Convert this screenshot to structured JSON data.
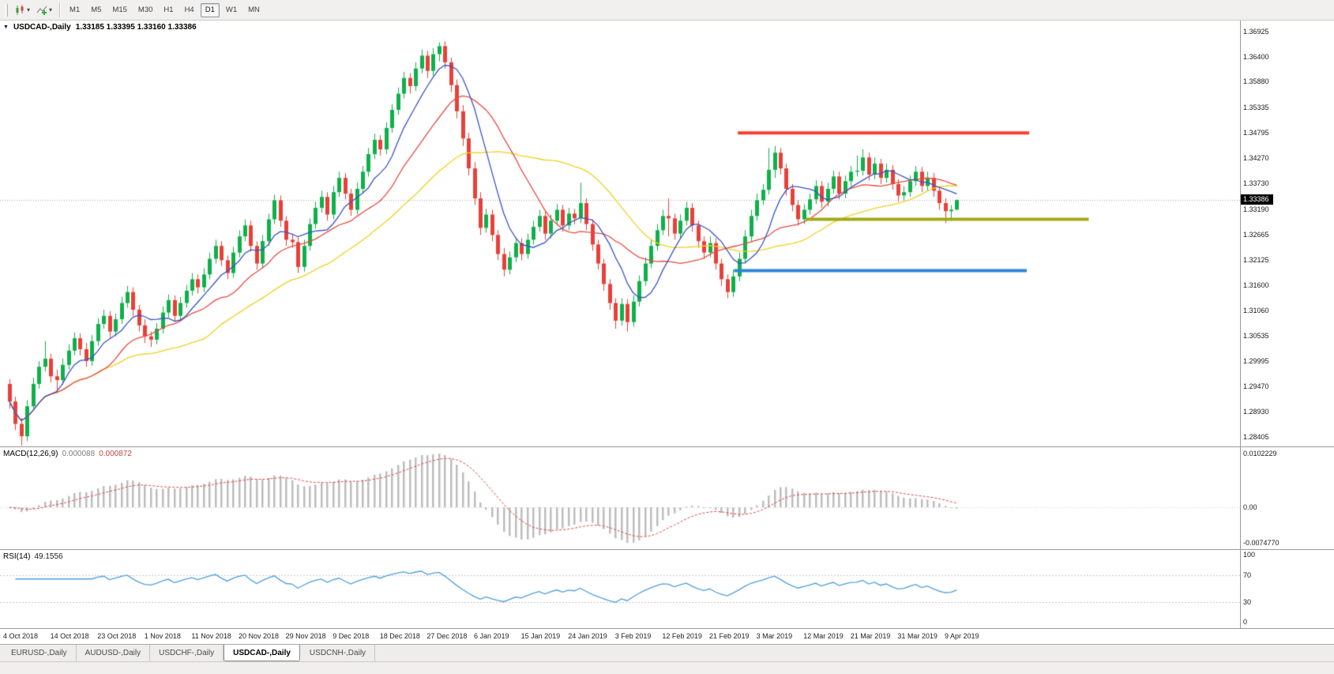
{
  "toolbar": {
    "timeframes": [
      "M1",
      "M5",
      "M15",
      "M30",
      "H1",
      "H4",
      "D1",
      "W1",
      "MN"
    ],
    "active_timeframe": "D1"
  },
  "main_chart": {
    "symbol_period": "USDCAD-,Daily",
    "ohlc": "1.33185 1.33395 1.33160 1.33386",
    "current_price": "1.33386",
    "price_ticks": [
      "1.36925",
      "1.36400",
      "1.35880",
      "1.35335",
      "1.34795",
      "1.34270",
      "1.33730",
      "1.33190",
      "1.32665",
      "1.32125",
      "1.31600",
      "1.31060",
      "1.30535",
      "1.29995",
      "1.29470",
      "1.28930",
      "1.28405"
    ]
  },
  "macd_panel": {
    "label": "MACD(12,26,9)",
    "value_main": "0.000088",
    "value_signal": "0.000872",
    "axis_top": "0.0102229",
    "axis_zero": "0.00",
    "axis_bottom": "-0.0074770"
  },
  "rsi_panel": {
    "label": "RSI(14)",
    "value": "49.1556",
    "axis": [
      "100",
      "70",
      "30",
      "0"
    ],
    "levels": [
      70,
      30
    ]
  },
  "date_axis": {
    "candles_per_label": 8,
    "labels": [
      "4 Oct 2018",
      "14 Oct 2018",
      "23 Oct 2018",
      "1 Nov 2018",
      "11 Nov 2018",
      "20 Nov 2018",
      "29 Nov 2018",
      "9 Dec 2018",
      "18 Dec 2018",
      "27 Dec 2018",
      "6 Jan 2019",
      "15 Jan 2019",
      "24 Jan 2019",
      "3 Feb 2019",
      "12 Feb 2019",
      "21 Feb 2019",
      "3 Mar 2019",
      "12 Mar 2019",
      "21 Mar 2019",
      "31 Mar 2019",
      "9 Apr 2019"
    ]
  },
  "tabs": {
    "items": [
      "EURUSD-,Daily",
      "AUDUSD-,Daily",
      "USDCHF-,Daily",
      "USDCAD-,Daily",
      "USDCNH-,Daily"
    ],
    "active": "USDCAD-,Daily"
  },
  "chart_data": {
    "type": "candlestick",
    "symbol": "USDCAD",
    "timeframe": "Daily",
    "price_max": 1.36925,
    "price_min": 1.28405,
    "current_price": 1.33386,
    "bull_color": "#0fb04b",
    "bear_color": "#e8403a",
    "moving_averages": [
      {
        "period": 8,
        "color": "#3a53c4"
      },
      {
        "period": 17,
        "color": "#e84a3f"
      },
      {
        "period": 34,
        "color": "#f0d01e"
      }
    ],
    "hlines": [
      {
        "name": "resistance-line",
        "price": 1.34795,
        "color": "#ff3c32",
        "width": 4,
        "x1": 0.595,
        "x2": 0.83
      },
      {
        "name": "support-line-olive",
        "price": 1.3298,
        "color": "#a2a818",
        "width": 4,
        "x1": 0.65,
        "x2": 0.878
      },
      {
        "name": "support-line-blue",
        "price": 1.319,
        "color": "#2f84d6",
        "width": 4,
        "x1": 0.592,
        "x2": 0.828
      }
    ],
    "macd": {
      "fast": 12,
      "slow": 26,
      "signal": 9,
      "histogram_color": "#bdbdbd",
      "signal_color": "#d94848",
      "range": [
        -0.007477,
        0.0102229
      ]
    },
    "rsi": {
      "period": 14,
      "color": "#4d9fdd",
      "value": 49.1556
    },
    "candles": [
      [
        1.2952,
        1.2962,
        1.29,
        1.2915
      ],
      [
        1.2915,
        1.2925,
        1.2855,
        1.2868
      ],
      [
        1.2868,
        1.288,
        1.2822,
        1.2842
      ],
      [
        1.2842,
        1.2918,
        1.2832,
        1.2905
      ],
      [
        1.2905,
        1.2965,
        1.2895,
        1.2952
      ],
      [
        1.2952,
        1.3,
        1.2942,
        1.2988
      ],
      [
        1.2988,
        1.3042,
        1.2978,
        1.3005
      ],
      [
        1.3005,
        1.3015,
        1.2955,
        1.2968
      ],
      [
        1.2968,
        1.2982,
        1.2935,
        1.296
      ],
      [
        1.296,
        1.3005,
        1.295,
        1.2992
      ],
      [
        1.2992,
        1.3035,
        1.2982,
        1.3022
      ],
      [
        1.3022,
        1.306,
        1.3012,
        1.3048
      ],
      [
        1.3048,
        1.3058,
        1.3012,
        1.3025
      ],
      [
        1.3025,
        1.3038,
        1.2988,
        1.3
      ],
      [
        1.3,
        1.3055,
        1.299,
        1.3042
      ],
      [
        1.3042,
        1.309,
        1.3032,
        1.3078
      ],
      [
        1.3078,
        1.3108,
        1.3068,
        1.3095
      ],
      [
        1.3095,
        1.3105,
        1.3048,
        1.3062
      ],
      [
        1.3062,
        1.31,
        1.3052,
        1.3088
      ],
      [
        1.3088,
        1.3135,
        1.3078,
        1.3122
      ],
      [
        1.3122,
        1.3158,
        1.3112,
        1.3145
      ],
      [
        1.3145,
        1.3155,
        1.3095,
        1.3108
      ],
      [
        1.3108,
        1.3118,
        1.3062,
        1.3075
      ],
      [
        1.3075,
        1.3088,
        1.3038,
        1.3052
      ],
      [
        1.3052,
        1.3062,
        1.303,
        1.3045
      ],
      [
        1.3045,
        1.308,
        1.3035,
        1.3068
      ],
      [
        1.3068,
        1.3115,
        1.3058,
        1.3102
      ],
      [
        1.3102,
        1.314,
        1.3092,
        1.3128
      ],
      [
        1.3128,
        1.3138,
        1.3082,
        1.3095
      ],
      [
        1.3095,
        1.3135,
        1.3085,
        1.3122
      ],
      [
        1.3122,
        1.316,
        1.3112,
        1.3148
      ],
      [
        1.3148,
        1.3185,
        1.3138,
        1.3172
      ],
      [
        1.3172,
        1.3182,
        1.3142,
        1.3155
      ],
      [
        1.3155,
        1.3195,
        1.3145,
        1.3182
      ],
      [
        1.3182,
        1.3228,
        1.3172,
        1.3215
      ],
      [
        1.3215,
        1.3255,
        1.3205,
        1.3242
      ],
      [
        1.3242,
        1.3252,
        1.32,
        1.3212
      ],
      [
        1.3212,
        1.3222,
        1.3172,
        1.3185
      ],
      [
        1.3185,
        1.324,
        1.3175,
        1.3228
      ],
      [
        1.3228,
        1.3275,
        1.3218,
        1.3262
      ],
      [
        1.3262,
        1.3298,
        1.3252,
        1.3285
      ],
      [
        1.3285,
        1.3295,
        1.323,
        1.3242
      ],
      [
        1.3242,
        1.3252,
        1.3192,
        1.3205
      ],
      [
        1.3205,
        1.3265,
        1.3195,
        1.3252
      ],
      [
        1.3252,
        1.331,
        1.3242,
        1.3298
      ],
      [
        1.3298,
        1.335,
        1.3288,
        1.3338
      ],
      [
        1.3338,
        1.3348,
        1.3282,
        1.3295
      ],
      [
        1.3295,
        1.3305,
        1.3242,
        1.3255
      ],
      [
        1.3255,
        1.3268,
        1.3238,
        1.325
      ],
      [
        1.325,
        1.326,
        1.3185,
        1.3198
      ],
      [
        1.3198,
        1.3255,
        1.3188,
        1.3242
      ],
      [
        1.3242,
        1.33,
        1.3232,
        1.3288
      ],
      [
        1.3288,
        1.3335,
        1.3278,
        1.3322
      ],
      [
        1.3322,
        1.3358,
        1.3312,
        1.3345
      ],
      [
        1.3345,
        1.3355,
        1.3295,
        1.3308
      ],
      [
        1.3308,
        1.3368,
        1.3298,
        1.3355
      ],
      [
        1.3355,
        1.3398,
        1.3345,
        1.3385
      ],
      [
        1.3385,
        1.3395,
        1.334,
        1.3352
      ],
      [
        1.3352,
        1.3362,
        1.3305,
        1.3318
      ],
      [
        1.3318,
        1.3375,
        1.3308,
        1.3362
      ],
      [
        1.3362,
        1.341,
        1.3352,
        1.3398
      ],
      [
        1.3398,
        1.3448,
        1.3388,
        1.3435
      ],
      [
        1.3435,
        1.3478,
        1.3425,
        1.3465
      ],
      [
        1.3465,
        1.3475,
        1.3432,
        1.3445
      ],
      [
        1.3445,
        1.3502,
        1.3435,
        1.349
      ],
      [
        1.349,
        1.354,
        1.348,
        1.3528
      ],
      [
        1.3528,
        1.3575,
        1.3518,
        1.3562
      ],
      [
        1.3562,
        1.3608,
        1.3552,
        1.3595
      ],
      [
        1.3595,
        1.3605,
        1.3562,
        1.3578
      ],
      [
        1.3578,
        1.3628,
        1.3568,
        1.3615
      ],
      [
        1.3615,
        1.3655,
        1.3605,
        1.3642
      ],
      [
        1.3642,
        1.3652,
        1.3595,
        1.361
      ],
      [
        1.361,
        1.3658,
        1.36,
        1.3645
      ],
      [
        1.3645,
        1.367,
        1.363,
        1.3662
      ],
      [
        1.3662,
        1.3672,
        1.3615,
        1.3628
      ],
      [
        1.3628,
        1.3638,
        1.3565,
        1.358
      ],
      [
        1.358,
        1.3592,
        1.351,
        1.3525
      ],
      [
        1.3525,
        1.3538,
        1.3452,
        1.3468
      ],
      [
        1.3468,
        1.348,
        1.339,
        1.3405
      ],
      [
        1.3405,
        1.3418,
        1.3328,
        1.3342
      ],
      [
        1.3342,
        1.3355,
        1.3265,
        1.328
      ],
      [
        1.328,
        1.332,
        1.327,
        1.3308
      ],
      [
        1.3308,
        1.3318,
        1.3252,
        1.3265
      ],
      [
        1.3265,
        1.3275,
        1.3212,
        1.3225
      ],
      [
        1.3225,
        1.3238,
        1.3178,
        1.3192
      ],
      [
        1.3192,
        1.323,
        1.3182,
        1.3218
      ],
      [
        1.3218,
        1.326,
        1.3208,
        1.3248
      ],
      [
        1.3248,
        1.3258,
        1.3212,
        1.3225
      ],
      [
        1.3225,
        1.3268,
        1.3215,
        1.3255
      ],
      [
        1.3255,
        1.3295,
        1.3245,
        1.3282
      ],
      [
        1.3282,
        1.3318,
        1.3272,
        1.3305
      ],
      [
        1.3305,
        1.3315,
        1.3255,
        1.3268
      ],
      [
        1.3268,
        1.3308,
        1.3258,
        1.3295
      ],
      [
        1.3295,
        1.333,
        1.3285,
        1.3318
      ],
      [
        1.3318,
        1.3328,
        1.3272,
        1.3285
      ],
      [
        1.3285,
        1.3322,
        1.3275,
        1.331
      ],
      [
        1.331,
        1.332,
        1.3288,
        1.33
      ],
      [
        1.33,
        1.3375,
        1.329,
        1.3332
      ],
      [
        1.3332,
        1.3342,
        1.3275,
        1.3288
      ],
      [
        1.3288,
        1.3298,
        1.3232,
        1.3245
      ],
      [
        1.3245,
        1.3255,
        1.3192,
        1.3205
      ],
      [
        1.3205,
        1.3215,
        1.3148,
        1.3162
      ],
      [
        1.3162,
        1.3172,
        1.3108,
        1.3122
      ],
      [
        1.3122,
        1.3132,
        1.3068,
        1.3085
      ],
      [
        1.3085,
        1.3132,
        1.3075,
        1.312
      ],
      [
        1.312,
        1.313,
        1.3062,
        1.3082
      ],
      [
        1.3082,
        1.3138,
        1.3072,
        1.3125
      ],
      [
        1.3125,
        1.318,
        1.3115,
        1.3168
      ],
      [
        1.3168,
        1.3218,
        1.3158,
        1.3205
      ],
      [
        1.3205,
        1.3255,
        1.3195,
        1.3242
      ],
      [
        1.3242,
        1.3288,
        1.3232,
        1.3275
      ],
      [
        1.3275,
        1.3318,
        1.3265,
        1.3305
      ],
      [
        1.3305,
        1.3342,
        1.3262,
        1.33
      ],
      [
        1.33,
        1.331,
        1.3255,
        1.3268
      ],
      [
        1.3268,
        1.3308,
        1.3258,
        1.3295
      ],
      [
        1.3295,
        1.3335,
        1.3285,
        1.3322
      ],
      [
        1.3322,
        1.3332,
        1.3272,
        1.3285
      ],
      [
        1.3285,
        1.3295,
        1.3238,
        1.3252
      ],
      [
        1.3252,
        1.3262,
        1.3215,
        1.3228
      ],
      [
        1.3228,
        1.3262,
        1.3218,
        1.3248
      ],
      [
        1.3248,
        1.3258,
        1.3192,
        1.3205
      ],
      [
        1.3205,
        1.3215,
        1.3158,
        1.3172
      ],
      [
        1.3172,
        1.3182,
        1.3132,
        1.3145
      ],
      [
        1.3145,
        1.3192,
        1.3135,
        1.3178
      ],
      [
        1.3178,
        1.3228,
        1.3168,
        1.3215
      ],
      [
        1.3215,
        1.3275,
        1.3205,
        1.3262
      ],
      [
        1.3262,
        1.3318,
        1.3252,
        1.3305
      ],
      [
        1.3305,
        1.3352,
        1.3295,
        1.3338
      ],
      [
        1.3338,
        1.3372,
        1.3328,
        1.336
      ],
      [
        1.336,
        1.3448,
        1.335,
        1.3402
      ],
      [
        1.3402,
        1.3452,
        1.3385,
        1.3438
      ],
      [
        1.3438,
        1.3448,
        1.3392,
        1.3405
      ],
      [
        1.3405,
        1.3415,
        1.3348,
        1.3362
      ],
      [
        1.3362,
        1.3372,
        1.3315,
        1.3328
      ],
      [
        1.3328,
        1.3338,
        1.3285,
        1.3298
      ],
      [
        1.3298,
        1.333,
        1.3288,
        1.3318
      ],
      [
        1.3318,
        1.3352,
        1.3308,
        1.334
      ],
      [
        1.334,
        1.338,
        1.333,
        1.3368
      ],
      [
        1.3368,
        1.3378,
        1.3322,
        1.3335
      ],
      [
        1.3335,
        1.3375,
        1.3325,
        1.3362
      ],
      [
        1.3362,
        1.34,
        1.3352,
        1.3388
      ],
      [
        1.3388,
        1.3398,
        1.334,
        1.3352
      ],
      [
        1.3352,
        1.339,
        1.3342,
        1.3378
      ],
      [
        1.3378,
        1.341,
        1.3368,
        1.3398
      ],
      [
        1.3398,
        1.3432,
        1.3388,
        1.34
      ],
      [
        1.34,
        1.3445,
        1.339,
        1.3428
      ],
      [
        1.3428,
        1.3438,
        1.338,
        1.3392
      ],
      [
        1.3392,
        1.3428,
        1.3382,
        1.3415
      ],
      [
        1.3415,
        1.3425,
        1.3372,
        1.3385
      ],
      [
        1.3385,
        1.3415,
        1.3375,
        1.3402
      ],
      [
        1.3402,
        1.3412,
        1.336,
        1.3372
      ],
      [
        1.3372,
        1.3382,
        1.3335,
        1.3348
      ],
      [
        1.3348,
        1.3368,
        1.3338,
        1.3355
      ],
      [
        1.3355,
        1.339,
        1.3345,
        1.3378
      ],
      [
        1.3378,
        1.341,
        1.3368,
        1.3398
      ],
      [
        1.3398,
        1.3408,
        1.3355,
        1.3368
      ],
      [
        1.3368,
        1.3398,
        1.3358,
        1.3385
      ],
      [
        1.3385,
        1.3395,
        1.3345,
        1.3358
      ],
      [
        1.3358,
        1.3368,
        1.3318,
        1.3332
      ],
      [
        1.3332,
        1.3342,
        1.329,
        1.3315
      ],
      [
        1.3315,
        1.3328,
        1.3295,
        1.3318
      ],
      [
        1.33185,
        1.33395,
        1.3316,
        1.33386
      ]
    ]
  }
}
